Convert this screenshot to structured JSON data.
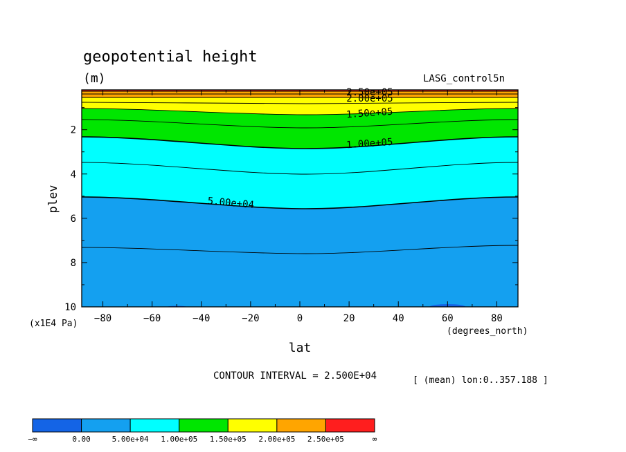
{
  "chart_data": {
    "type": "contour",
    "title": "geopotential height",
    "units": "(m)",
    "dataset": "LASG_control5n",
    "xlabel": "lat",
    "xunits": "(degrees_north)",
    "ylabel": "plev",
    "yunits": "(x1E4 Pa)",
    "xlim": [
      -88.6,
      88.6
    ],
    "ylim": [
      10,
      0.2
    ],
    "xticks": [
      -80,
      -60,
      -40,
      -20,
      0,
      20,
      40,
      60,
      80
    ],
    "xtick_labels": [
      "−80",
      "−60",
      "−40",
      "−20",
      "0",
      "20",
      "40",
      "60",
      "80"
    ],
    "yticks": [
      2,
      4,
      6,
      8,
      10
    ],
    "ytick_labels": [
      "2",
      "4",
      "6",
      "8",
      "10"
    ],
    "contour_labels": [
      "2.50e+05",
      "2.00e+05",
      "1.50e+05",
      "1.00e+05",
      "5.00e+04"
    ],
    "contour_interval": "CONTOUR INTERVAL = 2.500E+04",
    "subset_note": "[ (mean) lon:0..357.188 ]",
    "colorbar": {
      "colors": [
        "#1464e6",
        "#14a0f0",
        "#00ffff",
        "#00e600",
        "#ffff00",
        "#ffa500",
        "#ff1e1e"
      ],
      "labels": [
        "−∞",
        "0.00",
        "5.00e+04",
        "1.00e+05",
        "1.50e+05",
        "2.00e+05",
        "2.50e+05",
        "∞"
      ]
    }
  }
}
